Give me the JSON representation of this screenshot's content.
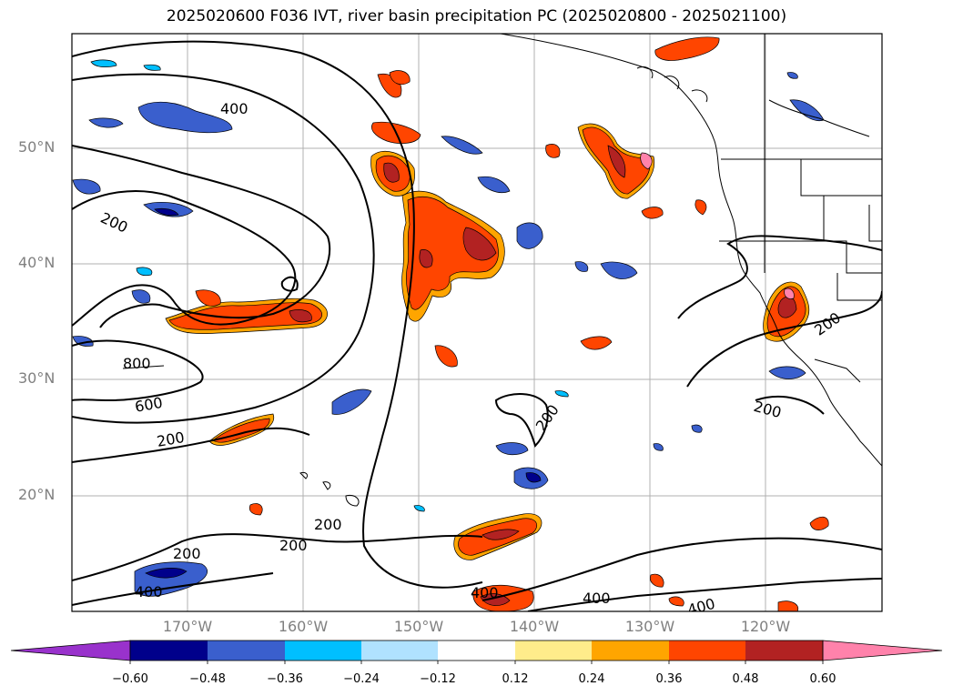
{
  "title": "2025020600 F036 IVT, river basin precipitation PC (2025020800 - 2025021100)",
  "lat_labels": [
    "50°N",
    "40°N",
    "30°N",
    "20°N"
  ],
  "lon_labels": [
    "170°W",
    "160°W",
    "150°W",
    "140°W",
    "130°W",
    "120°W"
  ],
  "contour_labels": [
    "400",
    "200",
    "200",
    "800",
    "600",
    "200",
    "200",
    "200",
    "400",
    "400",
    "200",
    "200",
    "200",
    "400",
    "400"
  ],
  "colorbar": {
    "labels": [
      "−0.60",
      "−0.48",
      "−0.36",
      "−0.24",
      "−0.12",
      "0.12",
      "0.24",
      "0.36",
      "0.48",
      "0.60"
    ],
    "colors": [
      "#9932cc",
      "#00008b",
      "#3a5fcd",
      "#00bfff",
      "#b0e2ff",
      "#ffffff",
      "#ffec8b",
      "#ffa500",
      "#ff4500",
      "#b22222",
      "#ff82ab"
    ]
  },
  "chart_data": {
    "type": "heatmap",
    "title": "2025020600 F036 IVT, river basin precipitation PC (2025020800 - 2025021100)",
    "field": "river basin precipitation PC (filled), IVT (contours)",
    "lon_range": [
      -180,
      -110
    ],
    "lat_range": [
      10,
      60
    ],
    "contour_levels": [
      200,
      400,
      600,
      800
    ],
    "color_levels": [
      -0.6,
      -0.48,
      -0.36,
      -0.24,
      -0.12,
      0.12,
      0.24,
      0.36,
      0.48,
      0.6
    ],
    "grid": true
  }
}
